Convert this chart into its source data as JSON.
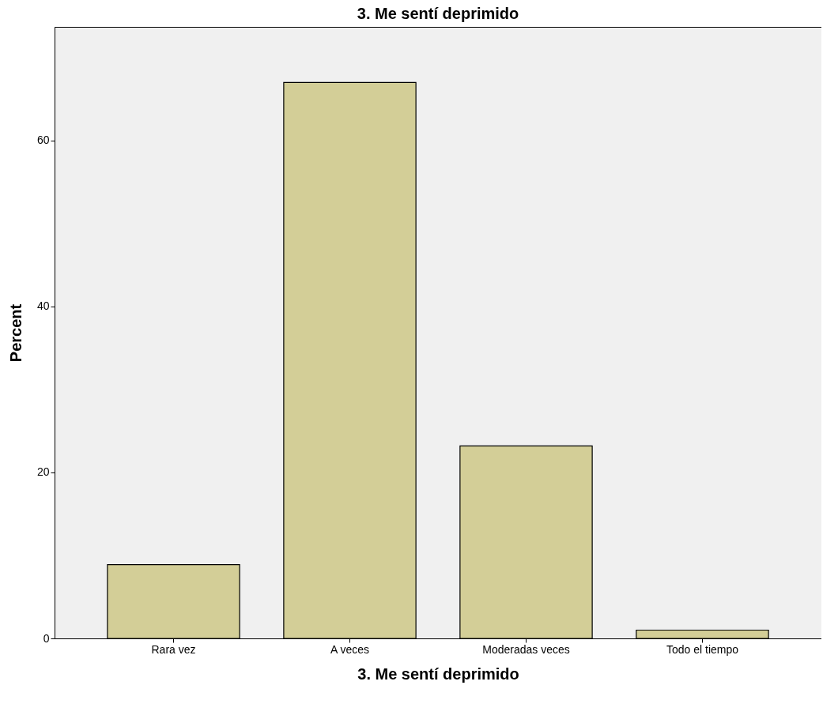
{
  "chart_data": {
    "type": "bar",
    "title": "3. Me sentí deprimido",
    "xlabel": "3. Me sentí deprimido",
    "ylabel": "Percent",
    "categories": [
      "Rara vez",
      "A veces",
      "Moderadas veces",
      "Todo el tiempo"
    ],
    "values": [
      8.9,
      67.0,
      23.2,
      1.0
    ],
    "color": "#d3ce97",
    "ylim": [
      0,
      73.7
    ],
    "yticks": [
      0,
      20,
      40,
      60
    ],
    "grid": false
  }
}
